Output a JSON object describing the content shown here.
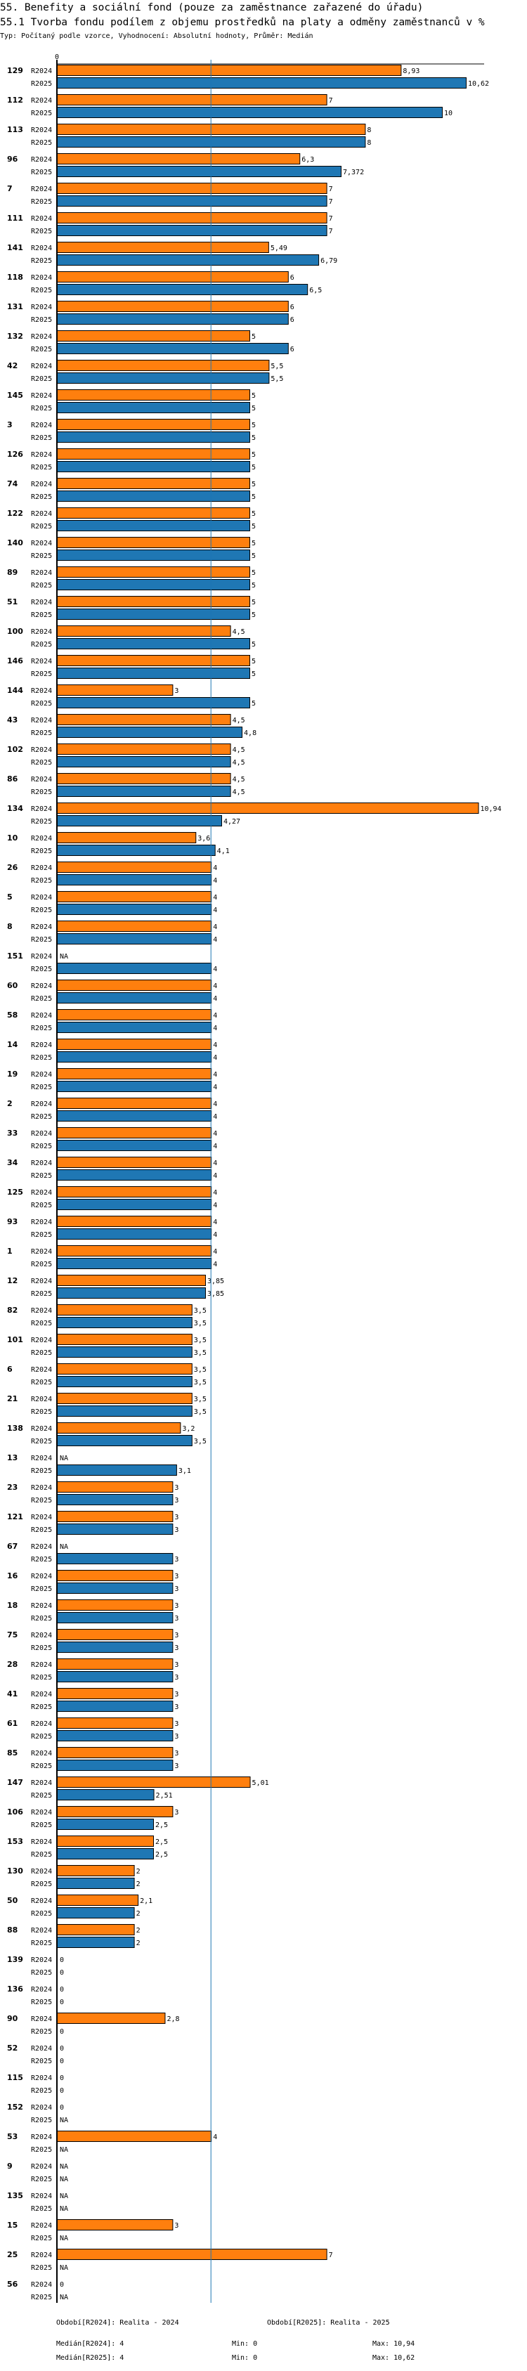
{
  "header": {
    "title": "55. Benefity a sociální fond (pouze za zaměstnance zařazené do úřadu)",
    "subtitle": "55.1 Tvorba fondu podílem z objemu prostředků na platy a odměny zaměstnanců v %",
    "meta": "Typ: Počítaný podle vzorce, Vyhodnocení: Absolutní hodnoty, Průměr: Medián"
  },
  "colors": {
    "R2024": "#ff7f0e",
    "R2025": "#1f77b4",
    "median": "#1f77b4"
  },
  "chart_data": {
    "type": "bar",
    "orientation": "horizontal",
    "x_tick_labels": [
      "0"
    ],
    "xlim": [
      0,
      11
    ],
    "series_names": [
      "R2024",
      "R2025"
    ],
    "median_value": 4,
    "groups": [
      {
        "id": "129",
        "R2024": 8.93,
        "R2025": 10.62,
        "l2024": "8,93",
        "l2025": "10,62"
      },
      {
        "id": "112",
        "R2024": 7,
        "R2025": 10,
        "l2024": "7",
        "l2025": "10"
      },
      {
        "id": "113",
        "R2024": 8,
        "R2025": 8,
        "l2024": "8",
        "l2025": "8"
      },
      {
        "id": "96",
        "R2024": 6.3,
        "R2025": 7.372,
        "l2024": "6,3",
        "l2025": "7,372"
      },
      {
        "id": "7",
        "R2024": 7,
        "R2025": 7,
        "l2024": "7",
        "l2025": "7"
      },
      {
        "id": "111",
        "R2024": 7,
        "R2025": 7,
        "l2024": "7",
        "l2025": "7"
      },
      {
        "id": "141",
        "R2024": 5.49,
        "R2025": 6.79,
        "l2024": "5,49",
        "l2025": "6,79"
      },
      {
        "id": "118",
        "R2024": 6,
        "R2025": 6.5,
        "l2024": "6",
        "l2025": "6,5"
      },
      {
        "id": "131",
        "R2024": 6,
        "R2025": 6,
        "l2024": "6",
        "l2025": "6"
      },
      {
        "id": "132",
        "R2024": 5,
        "R2025": 6,
        "l2024": "5",
        "l2025": "6"
      },
      {
        "id": "42",
        "R2024": 5.5,
        "R2025": 5.5,
        "l2024": "5,5",
        "l2025": "5,5"
      },
      {
        "id": "145",
        "R2024": 5,
        "R2025": 5,
        "l2024": "5",
        "l2025": "5"
      },
      {
        "id": "3",
        "R2024": 5,
        "R2025": 5,
        "l2024": "5",
        "l2025": "5"
      },
      {
        "id": "126",
        "R2024": 5,
        "R2025": 5,
        "l2024": "5",
        "l2025": "5"
      },
      {
        "id": "74",
        "R2024": 5,
        "R2025": 5,
        "l2024": "5",
        "l2025": "5"
      },
      {
        "id": "122",
        "R2024": 5,
        "R2025": 5,
        "l2024": "5",
        "l2025": "5"
      },
      {
        "id": "140",
        "R2024": 5,
        "R2025": 5,
        "l2024": "5",
        "l2025": "5"
      },
      {
        "id": "89",
        "R2024": 5,
        "R2025": 5,
        "l2024": "5",
        "l2025": "5"
      },
      {
        "id": "51",
        "R2024": 5,
        "R2025": 5,
        "l2024": "5",
        "l2025": "5"
      },
      {
        "id": "100",
        "R2024": 4.5,
        "R2025": 5,
        "l2024": "4,5",
        "l2025": "5"
      },
      {
        "id": "146",
        "R2024": 5,
        "R2025": 5,
        "l2024": "5",
        "l2025": "5"
      },
      {
        "id": "144",
        "R2024": 3,
        "R2025": 5,
        "l2024": "3",
        "l2025": "5"
      },
      {
        "id": "43",
        "R2024": 4.5,
        "R2025": 4.8,
        "l2024": "4,5",
        "l2025": "4,8"
      },
      {
        "id": "102",
        "R2024": 4.5,
        "R2025": 4.5,
        "l2024": "4,5",
        "l2025": "4,5"
      },
      {
        "id": "86",
        "R2024": 4.5,
        "R2025": 4.5,
        "l2024": "4,5",
        "l2025": "4,5"
      },
      {
        "id": "134",
        "R2024": 10.94,
        "R2025": 4.27,
        "l2024": "10,94",
        "l2025": "4,27"
      },
      {
        "id": "10",
        "R2024": 3.6,
        "R2025": 4.1,
        "l2024": "3,6",
        "l2025": "4,1"
      },
      {
        "id": "26",
        "R2024": 4,
        "R2025": 4,
        "l2024": "4",
        "l2025": "4"
      },
      {
        "id": "5",
        "R2024": 4,
        "R2025": 4,
        "l2024": "4",
        "l2025": "4"
      },
      {
        "id": "8",
        "R2024": 4,
        "R2025": 4,
        "l2024": "4",
        "l2025": "4"
      },
      {
        "id": "151",
        "R2024": null,
        "R2025": 4,
        "l2024": "NA",
        "l2025": "4"
      },
      {
        "id": "60",
        "R2024": 4,
        "R2025": 4,
        "l2024": "4",
        "l2025": "4"
      },
      {
        "id": "58",
        "R2024": 4,
        "R2025": 4,
        "l2024": "4",
        "l2025": "4"
      },
      {
        "id": "14",
        "R2024": 4,
        "R2025": 4,
        "l2024": "4",
        "l2025": "4"
      },
      {
        "id": "19",
        "R2024": 4,
        "R2025": 4,
        "l2024": "4",
        "l2025": "4"
      },
      {
        "id": "2",
        "R2024": 4,
        "R2025": 4,
        "l2024": "4",
        "l2025": "4"
      },
      {
        "id": "33",
        "R2024": 4,
        "R2025": 4,
        "l2024": "4",
        "l2025": "4"
      },
      {
        "id": "34",
        "R2024": 4,
        "R2025": 4,
        "l2024": "4",
        "l2025": "4"
      },
      {
        "id": "125",
        "R2024": 4,
        "R2025": 4,
        "l2024": "4",
        "l2025": "4"
      },
      {
        "id": "93",
        "R2024": 4,
        "R2025": 4,
        "l2024": "4",
        "l2025": "4"
      },
      {
        "id": "1",
        "R2024": 4,
        "R2025": 4,
        "l2024": "4",
        "l2025": "4"
      },
      {
        "id": "12",
        "R2024": 3.85,
        "R2025": 3.85,
        "l2024": "3,85",
        "l2025": "3,85"
      },
      {
        "id": "82",
        "R2024": 3.5,
        "R2025": 3.5,
        "l2024": "3,5",
        "l2025": "3,5"
      },
      {
        "id": "101",
        "R2024": 3.5,
        "R2025": 3.5,
        "l2024": "3,5",
        "l2025": "3,5"
      },
      {
        "id": "6",
        "R2024": 3.5,
        "R2025": 3.5,
        "l2024": "3,5",
        "l2025": "3,5"
      },
      {
        "id": "21",
        "R2024": 3.5,
        "R2025": 3.5,
        "l2024": "3,5",
        "l2025": "3,5"
      },
      {
        "id": "138",
        "R2024": 3.2,
        "R2025": 3.5,
        "l2024": "3,2",
        "l2025": "3,5"
      },
      {
        "id": "13",
        "R2024": null,
        "R2025": 3.1,
        "l2024": "NA",
        "l2025": "3,1"
      },
      {
        "id": "23",
        "R2024": 3,
        "R2025": 3,
        "l2024": "3",
        "l2025": "3"
      },
      {
        "id": "121",
        "R2024": 3,
        "R2025": 3,
        "l2024": "3",
        "l2025": "3"
      },
      {
        "id": "67",
        "R2024": null,
        "R2025": 3,
        "l2024": "NA",
        "l2025": "3"
      },
      {
        "id": "16",
        "R2024": 3,
        "R2025": 3,
        "l2024": "3",
        "l2025": "3"
      },
      {
        "id": "18",
        "R2024": 3,
        "R2025": 3,
        "l2024": "3",
        "l2025": "3"
      },
      {
        "id": "75",
        "R2024": 3,
        "R2025": 3,
        "l2024": "3",
        "l2025": "3"
      },
      {
        "id": "28",
        "R2024": 3,
        "R2025": 3,
        "l2024": "3",
        "l2025": "3"
      },
      {
        "id": "41",
        "R2024": 3,
        "R2025": 3,
        "l2024": "3",
        "l2025": "3"
      },
      {
        "id": "61",
        "R2024": 3,
        "R2025": 3,
        "l2024": "3",
        "l2025": "3"
      },
      {
        "id": "85",
        "R2024": 3,
        "R2025": 3,
        "l2024": "3",
        "l2025": "3"
      },
      {
        "id": "147",
        "R2024": 5.01,
        "R2025": 2.51,
        "l2024": "5,01",
        "l2025": "2,51"
      },
      {
        "id": "106",
        "R2024": 3,
        "R2025": 2.5,
        "l2024": "3",
        "l2025": "2,5"
      },
      {
        "id": "153",
        "R2024": 2.5,
        "R2025": 2.5,
        "l2024": "2,5",
        "l2025": "2,5"
      },
      {
        "id": "130",
        "R2024": 2,
        "R2025": 2,
        "l2024": "2",
        "l2025": "2"
      },
      {
        "id": "50",
        "R2024": 2.1,
        "R2025": 2,
        "l2024": "2,1",
        "l2025": "2"
      },
      {
        "id": "88",
        "R2024": 2,
        "R2025": 2,
        "l2024": "2",
        "l2025": "2"
      },
      {
        "id": "139",
        "R2024": 0,
        "R2025": 0,
        "l2024": "0",
        "l2025": "0"
      },
      {
        "id": "136",
        "R2024": 0,
        "R2025": 0,
        "l2024": "0",
        "l2025": "0"
      },
      {
        "id": "90",
        "R2024": 2.8,
        "R2025": 0,
        "l2024": "2,8",
        "l2025": "0"
      },
      {
        "id": "52",
        "R2024": 0,
        "R2025": 0,
        "l2024": "0",
        "l2025": "0"
      },
      {
        "id": "115",
        "R2024": 0,
        "R2025": 0,
        "l2024": "0",
        "l2025": "0"
      },
      {
        "id": "152",
        "R2024": 0,
        "R2025": null,
        "l2024": "0",
        "l2025": "NA"
      },
      {
        "id": "53",
        "R2024": 4,
        "R2025": null,
        "l2024": "4",
        "l2025": "NA"
      },
      {
        "id": "9",
        "R2024": null,
        "R2025": null,
        "l2024": "NA",
        "l2025": "NA"
      },
      {
        "id": "135",
        "R2024": null,
        "R2025": null,
        "l2024": "NA",
        "l2025": "NA"
      },
      {
        "id": "15",
        "R2024": 3,
        "R2025": null,
        "l2024": "3",
        "l2025": "NA"
      },
      {
        "id": "25",
        "R2024": 7,
        "R2025": null,
        "l2024": "7",
        "l2025": "NA"
      },
      {
        "id": "56",
        "R2024": 0,
        "R2025": null,
        "l2024": "0",
        "l2025": "NA"
      }
    ]
  },
  "footer": {
    "period_2024": "Období[R2024]: Realita - 2024",
    "period_2025": "Období[R2025]: Realita - 2025",
    "median_2024": "Medián[R2024]: 4",
    "median_2025": "Medián[R2025]: 4",
    "min_2024": "Min: 0",
    "min_2025": "Min: 0",
    "max_2024": "Max: 10,94",
    "max_2025": "Max: 10,62"
  }
}
